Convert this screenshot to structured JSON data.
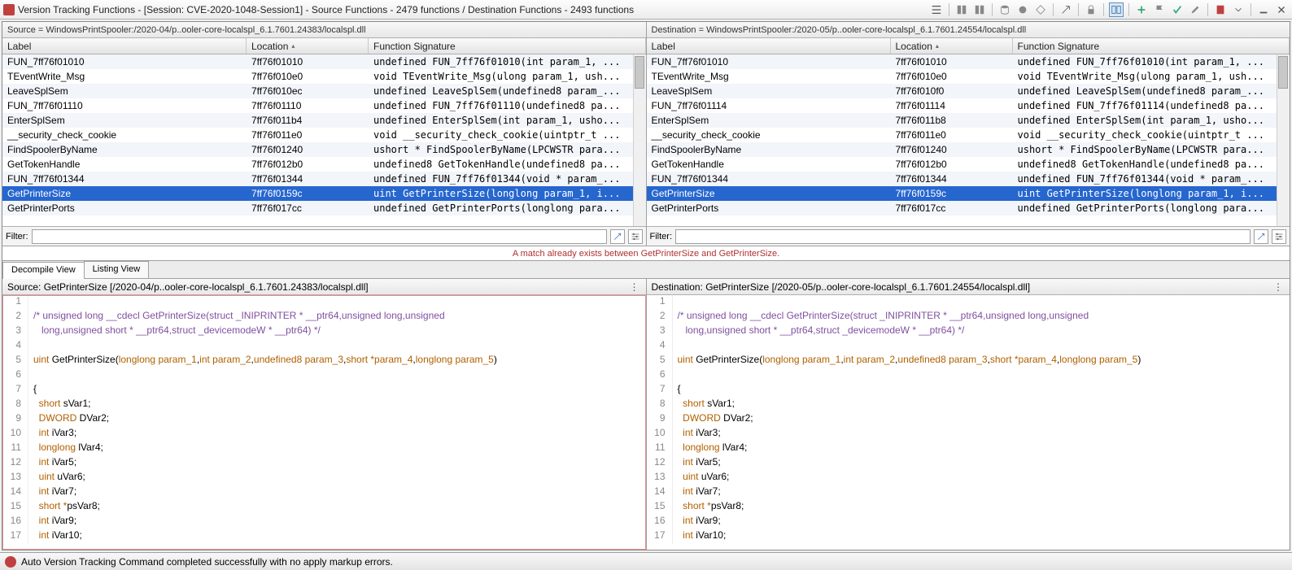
{
  "window": {
    "title": "Version Tracking Functions - [Session: CVE-2020-1048-Session1] - Source Functions - 2479 functions / Destination Functions - 2493 functions"
  },
  "source_panel": {
    "header": "Source = WindowsPrintSpooler:/2020-04/p..ooler-core-localspl_6.1.7601.24383/localspl.dll",
    "columns": {
      "label": "Label",
      "location": "Location",
      "sig": "Function Signature"
    },
    "rows": [
      {
        "label": "FUN_7ff76f01010",
        "loc": "7ff76f01010",
        "sig": "undefined FUN_7ff76f01010(int param_1, ..."
      },
      {
        "label": "TEventWrite_Msg",
        "loc": "7ff76f010e0",
        "sig": "void TEventWrite_Msg(ulong param_1, ush..."
      },
      {
        "label": "LeaveSplSem",
        "loc": "7ff76f010ec",
        "sig": "undefined LeaveSplSem(undefined8 param_..."
      },
      {
        "label": "FUN_7ff76f01110",
        "loc": "7ff76f01110",
        "sig": "undefined FUN_7ff76f01110(undefined8 pa..."
      },
      {
        "label": "EnterSplSem",
        "loc": "7ff76f011b4",
        "sig": "undefined EnterSplSem(int param_1, usho..."
      },
      {
        "label": "__security_check_cookie",
        "loc": "7ff76f011e0",
        "sig": "void __security_check_cookie(uintptr_t ..."
      },
      {
        "label": "FindSpoolerByName",
        "loc": "7ff76f01240",
        "sig": "ushort * FindSpoolerByName(LPCWSTR para..."
      },
      {
        "label": "GetTokenHandle",
        "loc": "7ff76f012b0",
        "sig": "undefined8 GetTokenHandle(undefined8 pa..."
      },
      {
        "label": "FUN_7ff76f01344",
        "loc": "7ff76f01344",
        "sig": "undefined FUN_7ff76f01344(void * param_..."
      },
      {
        "label": "GetPrinterSize",
        "loc": "7ff76f0159c",
        "sig": "uint GetPrinterSize(longlong param_1, i...",
        "selected": true
      },
      {
        "label": "GetPrinterPorts",
        "loc": "7ff76f017cc",
        "sig": "undefined GetPrinterPorts(longlong para..."
      }
    ],
    "filter_label": "Filter:"
  },
  "dest_panel": {
    "header": "Destination = WindowsPrintSpooler:/2020-05/p..ooler-core-localspl_6.1.7601.24554/localspl.dll",
    "columns": {
      "label": "Label",
      "location": "Location",
      "sig": "Function Signature"
    },
    "rows": [
      {
        "label": "FUN_7ff76f01010",
        "loc": "7ff76f01010",
        "sig": "undefined FUN_7ff76f01010(int param_1, ..."
      },
      {
        "label": "TEventWrite_Msg",
        "loc": "7ff76f010e0",
        "sig": "void TEventWrite_Msg(ulong param_1, ush..."
      },
      {
        "label": "LeaveSplSem",
        "loc": "7ff76f010f0",
        "sig": "undefined LeaveSplSem(undefined8 param_..."
      },
      {
        "label": "FUN_7ff76f01114",
        "loc": "7ff76f01114",
        "sig": "undefined FUN_7ff76f01114(undefined8 pa..."
      },
      {
        "label": "EnterSplSem",
        "loc": "7ff76f011b8",
        "sig": "undefined EnterSplSem(int param_1, usho..."
      },
      {
        "label": "__security_check_cookie",
        "loc": "7ff76f011e0",
        "sig": "void __security_check_cookie(uintptr_t ..."
      },
      {
        "label": "FindSpoolerByName",
        "loc": "7ff76f01240",
        "sig": "ushort * FindSpoolerByName(LPCWSTR para..."
      },
      {
        "label": "GetTokenHandle",
        "loc": "7ff76f012b0",
        "sig": "undefined8 GetTokenHandle(undefined8 pa..."
      },
      {
        "label": "FUN_7ff76f01344",
        "loc": "7ff76f01344",
        "sig": "undefined FUN_7ff76f01344(void * param_..."
      },
      {
        "label": "GetPrinterSize",
        "loc": "7ff76f0159c",
        "sig": "uint GetPrinterSize(longlong param_1, i...",
        "selected": true
      },
      {
        "label": "GetPrinterPorts",
        "loc": "7ff76f017cc",
        "sig": "undefined GetPrinterPorts(longlong para..."
      }
    ],
    "filter_label": "Filter:"
  },
  "match_message": "A match already exists between GetPrinterSize and GetPrinterSize.",
  "tabs": {
    "decompile": "Decompile View",
    "listing": "Listing View"
  },
  "src_code": {
    "header": "Source: GetPrinterSize  [/2020-04/p..ooler-core-localspl_6.1.7601.24383/localspl.dll]",
    "lines": [
      {
        "n": 1,
        "segs": []
      },
      {
        "n": 2,
        "segs": [
          {
            "c": "c-cmt",
            "t": "/* unsigned long __cdecl GetPrinterSize(struct _INIPRINTER * __ptr64,unsigned long,unsigned"
          }
        ]
      },
      {
        "n": 3,
        "segs": [
          {
            "c": "c-cmt",
            "t": "   long,unsigned short * __ptr64,struct _devicemodeW * __ptr64) */"
          }
        ]
      },
      {
        "n": 4,
        "segs": []
      },
      {
        "n": 5,
        "segs": [
          {
            "c": "c-type",
            "t": "uint "
          },
          {
            "c": "c-fn",
            "t": "GetPrinterSize"
          },
          {
            "c": "c-punc",
            "t": "("
          },
          {
            "c": "c-type",
            "t": "longlong "
          },
          {
            "c": "c-param",
            "t": "param_1"
          },
          {
            "c": "c-punc",
            "t": ","
          },
          {
            "c": "c-type",
            "t": "int "
          },
          {
            "c": "c-param",
            "t": "param_2"
          },
          {
            "c": "c-punc",
            "t": ","
          },
          {
            "c": "c-type",
            "t": "undefined8 "
          },
          {
            "c": "c-param",
            "t": "param_3"
          },
          {
            "c": "c-punc",
            "t": ","
          },
          {
            "c": "c-type",
            "t": "short *"
          },
          {
            "c": "c-param",
            "t": "param_4"
          },
          {
            "c": "c-punc",
            "t": ","
          },
          {
            "c": "c-type",
            "t": "longlong "
          },
          {
            "c": "c-param",
            "t": "param_5"
          },
          {
            "c": "c-punc",
            "t": ")"
          }
        ]
      },
      {
        "n": 6,
        "segs": []
      },
      {
        "n": 7,
        "segs": [
          {
            "c": "c-punc",
            "t": "{"
          }
        ]
      },
      {
        "n": 8,
        "segs": [
          {
            "c": "c-punc",
            "t": "  "
          },
          {
            "c": "c-type",
            "t": "short "
          },
          {
            "c": "c-id",
            "t": "sVar1"
          },
          {
            "c": "c-punc",
            "t": ";"
          }
        ]
      },
      {
        "n": 9,
        "segs": [
          {
            "c": "c-punc",
            "t": "  "
          },
          {
            "c": "c-type",
            "t": "DWORD "
          },
          {
            "c": "c-id",
            "t": "DVar2"
          },
          {
            "c": "c-punc",
            "t": ";"
          }
        ]
      },
      {
        "n": 10,
        "segs": [
          {
            "c": "c-punc",
            "t": "  "
          },
          {
            "c": "c-type",
            "t": "int "
          },
          {
            "c": "c-id",
            "t": "iVar3"
          },
          {
            "c": "c-punc",
            "t": ";"
          }
        ]
      },
      {
        "n": 11,
        "segs": [
          {
            "c": "c-punc",
            "t": "  "
          },
          {
            "c": "c-type",
            "t": "longlong "
          },
          {
            "c": "c-id",
            "t": "lVar4"
          },
          {
            "c": "c-punc",
            "t": ";"
          }
        ]
      },
      {
        "n": 12,
        "segs": [
          {
            "c": "c-punc",
            "t": "  "
          },
          {
            "c": "c-type",
            "t": "int "
          },
          {
            "c": "c-id",
            "t": "iVar5"
          },
          {
            "c": "c-punc",
            "t": ";"
          }
        ]
      },
      {
        "n": 13,
        "segs": [
          {
            "c": "c-punc",
            "t": "  "
          },
          {
            "c": "c-type",
            "t": "uint "
          },
          {
            "c": "c-id",
            "t": "uVar6"
          },
          {
            "c": "c-punc",
            "t": ";"
          }
        ]
      },
      {
        "n": 14,
        "segs": [
          {
            "c": "c-punc",
            "t": "  "
          },
          {
            "c": "c-type",
            "t": "int "
          },
          {
            "c": "c-id",
            "t": "iVar7"
          },
          {
            "c": "c-punc",
            "t": ";"
          }
        ]
      },
      {
        "n": 15,
        "segs": [
          {
            "c": "c-punc",
            "t": "  "
          },
          {
            "c": "c-type",
            "t": "short *"
          },
          {
            "c": "c-id",
            "t": "psVar8"
          },
          {
            "c": "c-punc",
            "t": ";"
          }
        ]
      },
      {
        "n": 16,
        "segs": [
          {
            "c": "c-punc",
            "t": "  "
          },
          {
            "c": "c-type",
            "t": "int "
          },
          {
            "c": "c-id",
            "t": "iVar9"
          },
          {
            "c": "c-punc",
            "t": ";"
          }
        ]
      },
      {
        "n": 17,
        "segs": [
          {
            "c": "c-punc",
            "t": "  "
          },
          {
            "c": "c-type",
            "t": "int "
          },
          {
            "c": "c-id",
            "t": "iVar10"
          },
          {
            "c": "c-punc",
            "t": ";"
          }
        ]
      }
    ]
  },
  "dst_code": {
    "header": "Destination: GetPrinterSize  [/2020-05/p..ooler-core-localspl_6.1.7601.24554/localspl.dll]",
    "lines": [
      {
        "n": 1,
        "segs": []
      },
      {
        "n": 2,
        "segs": [
          {
            "c": "c-cmt",
            "t": "/* unsigned long __cdecl GetPrinterSize(struct _INIPRINTER * __ptr64,unsigned long,unsigned"
          }
        ]
      },
      {
        "n": 3,
        "segs": [
          {
            "c": "c-cmt",
            "t": "   long,unsigned short * __ptr64,struct _devicemodeW * __ptr64) */"
          }
        ]
      },
      {
        "n": 4,
        "segs": []
      },
      {
        "n": 5,
        "segs": [
          {
            "c": "c-type",
            "t": "uint "
          },
          {
            "c": "c-fn",
            "t": "GetPrinterSize"
          },
          {
            "c": "c-punc",
            "t": "("
          },
          {
            "c": "c-type",
            "t": "longlong "
          },
          {
            "c": "c-param",
            "t": "param_1"
          },
          {
            "c": "c-punc",
            "t": ","
          },
          {
            "c": "c-type",
            "t": "int "
          },
          {
            "c": "c-param",
            "t": "param_2"
          },
          {
            "c": "c-punc",
            "t": ","
          },
          {
            "c": "c-type",
            "t": "undefined8 "
          },
          {
            "c": "c-param",
            "t": "param_3"
          },
          {
            "c": "c-punc",
            "t": ","
          },
          {
            "c": "c-type",
            "t": "short *"
          },
          {
            "c": "c-param",
            "t": "param_4"
          },
          {
            "c": "c-punc",
            "t": ","
          },
          {
            "c": "c-type",
            "t": "longlong "
          },
          {
            "c": "c-param",
            "t": "param_5"
          },
          {
            "c": "c-punc",
            "t": ")"
          }
        ]
      },
      {
        "n": 6,
        "segs": []
      },
      {
        "n": 7,
        "segs": [
          {
            "c": "c-punc",
            "t": "{"
          }
        ]
      },
      {
        "n": 8,
        "segs": [
          {
            "c": "c-punc",
            "t": "  "
          },
          {
            "c": "c-type",
            "t": "short "
          },
          {
            "c": "c-id",
            "t": "sVar1"
          },
          {
            "c": "c-punc",
            "t": ";"
          }
        ]
      },
      {
        "n": 9,
        "segs": [
          {
            "c": "c-punc",
            "t": "  "
          },
          {
            "c": "c-type",
            "t": "DWORD "
          },
          {
            "c": "c-id",
            "t": "DVar2"
          },
          {
            "c": "c-punc",
            "t": ";"
          }
        ]
      },
      {
        "n": 10,
        "segs": [
          {
            "c": "c-punc",
            "t": "  "
          },
          {
            "c": "c-type",
            "t": "int "
          },
          {
            "c": "c-id",
            "t": "iVar3"
          },
          {
            "c": "c-punc",
            "t": ";"
          }
        ]
      },
      {
        "n": 11,
        "segs": [
          {
            "c": "c-punc",
            "t": "  "
          },
          {
            "c": "c-type",
            "t": "longlong "
          },
          {
            "c": "c-id",
            "t": "lVar4"
          },
          {
            "c": "c-punc",
            "t": ";"
          }
        ]
      },
      {
        "n": 12,
        "segs": [
          {
            "c": "c-punc",
            "t": "  "
          },
          {
            "c": "c-type",
            "t": "int "
          },
          {
            "c": "c-id",
            "t": "iVar5"
          },
          {
            "c": "c-punc",
            "t": ";"
          }
        ]
      },
      {
        "n": 13,
        "segs": [
          {
            "c": "c-punc",
            "t": "  "
          },
          {
            "c": "c-type",
            "t": "uint "
          },
          {
            "c": "c-id",
            "t": "uVar6"
          },
          {
            "c": "c-punc",
            "t": ";"
          }
        ]
      },
      {
        "n": 14,
        "segs": [
          {
            "c": "c-punc",
            "t": "  "
          },
          {
            "c": "c-type",
            "t": "int "
          },
          {
            "c": "c-id",
            "t": "iVar7"
          },
          {
            "c": "c-punc",
            "t": ";"
          }
        ]
      },
      {
        "n": 15,
        "segs": [
          {
            "c": "c-punc",
            "t": "  "
          },
          {
            "c": "c-type",
            "t": "short *"
          },
          {
            "c": "c-id",
            "t": "psVar8"
          },
          {
            "c": "c-punc",
            "t": ";"
          }
        ]
      },
      {
        "n": 16,
        "segs": [
          {
            "c": "c-punc",
            "t": "  "
          },
          {
            "c": "c-type",
            "t": "int "
          },
          {
            "c": "c-id",
            "t": "iVar9"
          },
          {
            "c": "c-punc",
            "t": ";"
          }
        ]
      },
      {
        "n": 17,
        "segs": [
          {
            "c": "c-punc",
            "t": "  "
          },
          {
            "c": "c-type",
            "t": "int "
          },
          {
            "c": "c-id",
            "t": "iVar10"
          },
          {
            "c": "c-punc",
            "t": ";"
          }
        ]
      }
    ]
  },
  "status": {
    "text": "Auto Version Tracking Command completed successfully with no apply markup errors."
  },
  "colors": {
    "selected_row": "#2666cf",
    "alt_row": "#f2f5fa",
    "match_text": "#b03030",
    "comment": "#8050a0",
    "type": "#b06000",
    "keyword": "#0000c0"
  }
}
